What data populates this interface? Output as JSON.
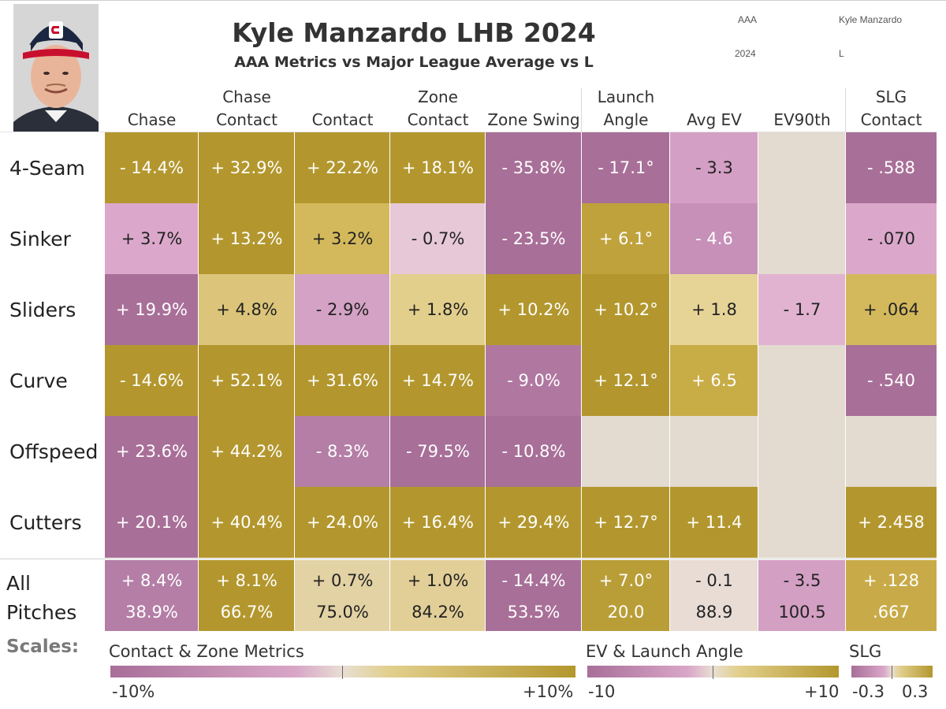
{
  "title": "Kyle Manzardo LHB 2024",
  "subtitle": "AAA Metrics vs Major League Average vs L",
  "meta": {
    "level": "AAA",
    "player": "Kyle Manzardo",
    "year": "2024",
    "hand": "L"
  },
  "columns": [
    {
      "line1": "",
      "line2": "Chase"
    },
    {
      "line1": "Chase",
      "line2": "Contact"
    },
    {
      "line1": "",
      "line2": "Contact"
    },
    {
      "line1": "Zone",
      "line2": "Contact"
    },
    {
      "line1": "",
      "line2": "Zone Swing"
    },
    {
      "line1": "Launch",
      "line2": "Angle"
    },
    {
      "line1": "",
      "line2": "Avg EV"
    },
    {
      "line1": "",
      "line2": "EV90th"
    },
    {
      "line1": "SLG",
      "line2": "Contact"
    }
  ],
  "rows": [
    {
      "label": "4-Seam",
      "cells": [
        {
          "text": "- 14.4%",
          "color": "#b3972e"
        },
        {
          "text": "+ 32.9%",
          "color": "#b3972e"
        },
        {
          "text": "+ 22.2%",
          "color": "#b3972e"
        },
        {
          "text": "+ 18.1%",
          "color": "#b3972e"
        },
        {
          "text": "- 35.8%",
          "color": "#a86f98"
        },
        {
          "text": "- 17.1°",
          "color": "#a86f98"
        },
        {
          "text": "- 3.3",
          "color": "#d49fc4"
        },
        {
          "text": "",
          "color": "#e3dad0"
        },
        {
          "text": "- .588",
          "color": "#a86f98"
        }
      ]
    },
    {
      "label": "Sinker",
      "cells": [
        {
          "text": "+ 3.7%",
          "color": "#dba8cb"
        },
        {
          "text": "+ 13.2%",
          "color": "#b3972e"
        },
        {
          "text": "+ 3.2%",
          "color": "#d4b95c"
        },
        {
          "text": "- 0.7%",
          "color": "#e6c8d6"
        },
        {
          "text": "- 23.5%",
          "color": "#a86f98"
        },
        {
          "text": "+ 6.1°",
          "color": "#bfa23c"
        },
        {
          "text": "- 4.6",
          "color": "#c690b8"
        },
        {
          "text": "",
          "color": "#e3dad0"
        },
        {
          "text": "- .070",
          "color": "#dba8cb"
        }
      ]
    },
    {
      "label": "Sliders",
      "cells": [
        {
          "text": "+ 19.9%",
          "color": "#a86f98"
        },
        {
          "text": "+ 4.8%",
          "color": "#dcc57a"
        },
        {
          "text": "- 2.9%",
          "color": "#d4a2c4"
        },
        {
          "text": "+ 1.8%",
          "color": "#e3cf8c"
        },
        {
          "text": "+ 10.2%",
          "color": "#b3972e"
        },
        {
          "text": "+ 10.2°",
          "color": "#b3972e"
        },
        {
          "text": "+ 1.8",
          "color": "#e6d497"
        },
        {
          "text": "- 1.7",
          "color": "#e2b3d1"
        },
        {
          "text": "+ .064",
          "color": "#d4b95c"
        }
      ]
    },
    {
      "label": "Curve",
      "cells": [
        {
          "text": "- 14.6%",
          "color": "#b3972e"
        },
        {
          "text": "+ 52.1%",
          "color": "#b3972e"
        },
        {
          "text": "+ 31.6%",
          "color": "#b3972e"
        },
        {
          "text": "+ 14.7%",
          "color": "#b3972e"
        },
        {
          "text": "- 9.0%",
          "color": "#b078a0"
        },
        {
          "text": "+ 12.1°",
          "color": "#b3972e"
        },
        {
          "text": "+ 6.5",
          "color": "#c8ac46"
        },
        {
          "text": "",
          "color": "#e3dad0"
        },
        {
          "text": "- .540",
          "color": "#a86f98"
        }
      ]
    },
    {
      "label": "Offspeed",
      "cells": [
        {
          "text": "+ 23.6%",
          "color": "#a86f98"
        },
        {
          "text": "+ 44.2%",
          "color": "#b3972e"
        },
        {
          "text": "- 8.3%",
          "color": "#b47ea6"
        },
        {
          "text": "- 79.5%",
          "color": "#a86f98"
        },
        {
          "text": "- 10.8%",
          "color": "#a86f98"
        },
        {
          "text": "",
          "color": "#e3dad0"
        },
        {
          "text": "",
          "color": "#e3dad0"
        },
        {
          "text": "",
          "color": "#e3dad0"
        },
        {
          "text": "",
          "color": "#e3dad0"
        }
      ]
    },
    {
      "label": "Cutters",
      "cells": [
        {
          "text": "+ 20.1%",
          "color": "#a86f98"
        },
        {
          "text": "+ 40.4%",
          "color": "#b3972e"
        },
        {
          "text": "+ 24.0%",
          "color": "#b3972e"
        },
        {
          "text": "+ 16.4%",
          "color": "#b3972e"
        },
        {
          "text": "+ 29.4%",
          "color": "#b3972e"
        },
        {
          "text": "+ 12.7°",
          "color": "#b3972e"
        },
        {
          "text": "+ 11.4",
          "color": "#b3972e"
        },
        {
          "text": "",
          "color": "#e3dad0"
        },
        {
          "text": "+ 2.458",
          "color": "#b3972e"
        }
      ]
    }
  ],
  "all_pitches": {
    "label_line1": "All",
    "label_line2": "Pitches",
    "cells": [
      {
        "diff": "+ 8.4%",
        "value": "38.9%",
        "color": "#b47ea6"
      },
      {
        "diff": "+ 8.1%",
        "value": "66.7%",
        "color": "#b3972e"
      },
      {
        "diff": "+ 0.7%",
        "value": "75.0%",
        "color": "#e2d2a4"
      },
      {
        "diff": "+ 1.0%",
        "value": "84.2%",
        "color": "#e2cf98"
      },
      {
        "diff": "- 14.4%",
        "value": "53.5%",
        "color": "#a86f98"
      },
      {
        "diff": "+ 7.0°",
        "value": "20.0",
        "color": "#b99e38"
      },
      {
        "diff": "- 0.1",
        "value": "88.9",
        "color": "#e8dcd5"
      },
      {
        "diff": "- 3.5",
        "value": "100.5",
        "color": "#d39fc3"
      },
      {
        "diff": "+ .128",
        "value": ".667",
        "color": "#c8ab48"
      }
    ]
  },
  "scales": {
    "heading": "Scales:",
    "items": [
      {
        "title": "Contact & Zone Metrics",
        "min": "-10%",
        "max": "+10%"
      },
      {
        "title": "EV & Launch Angle",
        "min": "-10",
        "max": "+10"
      },
      {
        "title": "SLG",
        "min": "-0.3",
        "max": "0.3"
      }
    ],
    "low_color": "#a86f98",
    "mid_color": "#e8dfd3",
    "high_color": "#b3972e"
  },
  "chart_data": {
    "type": "heatmap",
    "title": "Kyle Manzardo LHB 2024",
    "subtitle": "AAA Metrics vs Major League Average vs L",
    "x_categories": [
      "Chase",
      "Chase Contact",
      "Contact",
      "Zone Contact",
      "Zone Swing",
      "Launch Angle",
      "Avg EV",
      "EV90th",
      "SLG Contact"
    ],
    "y_categories": [
      "4-Seam",
      "Sinker",
      "Sliders",
      "Curve",
      "Offspeed",
      "Cutters",
      "All Pitches"
    ],
    "values": [
      [
        -14.4,
        32.9,
        22.2,
        18.1,
        -35.8,
        -17.1,
        -3.3,
        null,
        -0.588
      ],
      [
        3.7,
        13.2,
        3.2,
        -0.7,
        -23.5,
        6.1,
        -4.6,
        null,
        -0.07
      ],
      [
        19.9,
        4.8,
        -2.9,
        1.8,
        10.2,
        10.2,
        1.8,
        -1.7,
        0.064
      ],
      [
        -14.6,
        52.1,
        31.6,
        14.7,
        -9.0,
        12.1,
        6.5,
        null,
        -0.54
      ],
      [
        23.6,
        44.2,
        -8.3,
        -79.5,
        -10.8,
        null,
        null,
        null,
        null
      ],
      [
        20.1,
        40.4,
        24.0,
        16.4,
        29.4,
        12.7,
        11.4,
        null,
        2.458
      ],
      [
        8.4,
        8.1,
        0.7,
        1.0,
        -14.4,
        7.0,
        -0.1,
        -3.5,
        0.128
      ]
    ],
    "all_pitches_actual": [
      38.9,
      66.7,
      75.0,
      84.2,
      53.5,
      20.0,
      88.9,
      100.5,
      0.667
    ]
  }
}
